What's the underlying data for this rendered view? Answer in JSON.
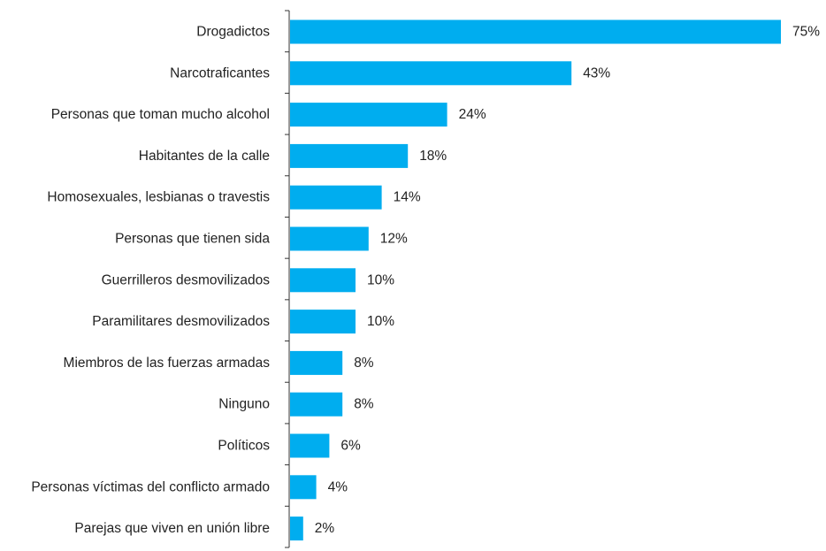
{
  "chart_data": {
    "type": "bar",
    "orientation": "horizontal",
    "categories": [
      "Drogadictos",
      "Narcotraficantes",
      "Personas que toman mucho alcohol",
      "Habitantes de la calle",
      "Homosexuales, lesbianas o travestis",
      "Personas que tienen sida",
      "Guerrilleros desmovilizados",
      "Paramilitares desmovilizados",
      "Miembros de las fuerzas armadas",
      "Ninguno",
      "Políticos",
      "Personas víctimas del conflicto armado",
      "Parejas que viven en unión libre"
    ],
    "values": [
      75,
      43,
      24,
      18,
      14,
      12,
      10,
      10,
      8,
      8,
      6,
      4,
      2
    ],
    "value_labels": [
      "75%",
      "43%",
      "24%",
      "18%",
      "14%",
      "12%",
      "10%",
      "10%",
      "8%",
      "8%",
      "6%",
      "4%",
      "2%"
    ],
    "unit": "%",
    "xlim": [
      0,
      75
    ],
    "grid": false,
    "legend": "none",
    "bar_color": "#00adef"
  }
}
